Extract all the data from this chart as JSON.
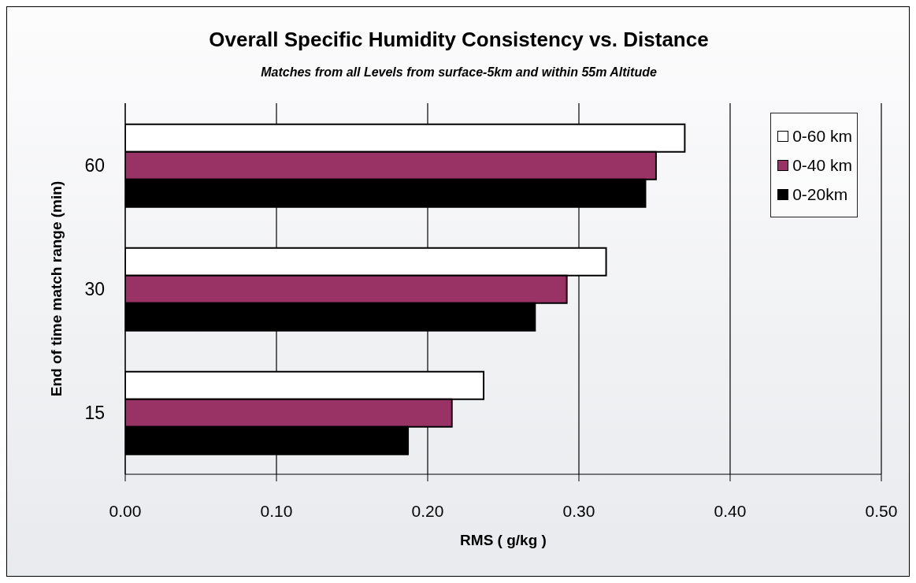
{
  "chart_data": {
    "type": "bar",
    "orientation": "horizontal",
    "title": "Overall Specific Humidity Consistency vs. Distance",
    "subtitle": "Matches from all Levels from surface-5km and within 55m Altitude",
    "xlabel": "RMS ( g/kg )",
    "ylabel": "End of time match range (min)",
    "categories": [
      "60",
      "30",
      "15"
    ],
    "series": [
      {
        "name": "0-60 km",
        "color": "#ffffff",
        "values": [
          0.37,
          0.318,
          0.237
        ]
      },
      {
        "name": "0-40 km",
        "color": "#993366",
        "values": [
          0.351,
          0.292,
          0.216
        ]
      },
      {
        "name": "0-20km",
        "color": "#000000",
        "values": [
          0.344,
          0.271,
          0.187
        ]
      }
    ],
    "xlim": [
      0,
      0.5
    ],
    "xticks": [
      {
        "value": 0,
        "label": "0.00"
      },
      {
        "value": 0.1,
        "label": "0.10"
      },
      {
        "value": 0.2,
        "label": "0.20"
      },
      {
        "value": 0.3,
        "label": "0.30"
      },
      {
        "value": 0.4,
        "label": "0.40"
      },
      {
        "value": 0.5,
        "label": "0.50"
      }
    ],
    "grid": "x",
    "legend": "top right"
  }
}
